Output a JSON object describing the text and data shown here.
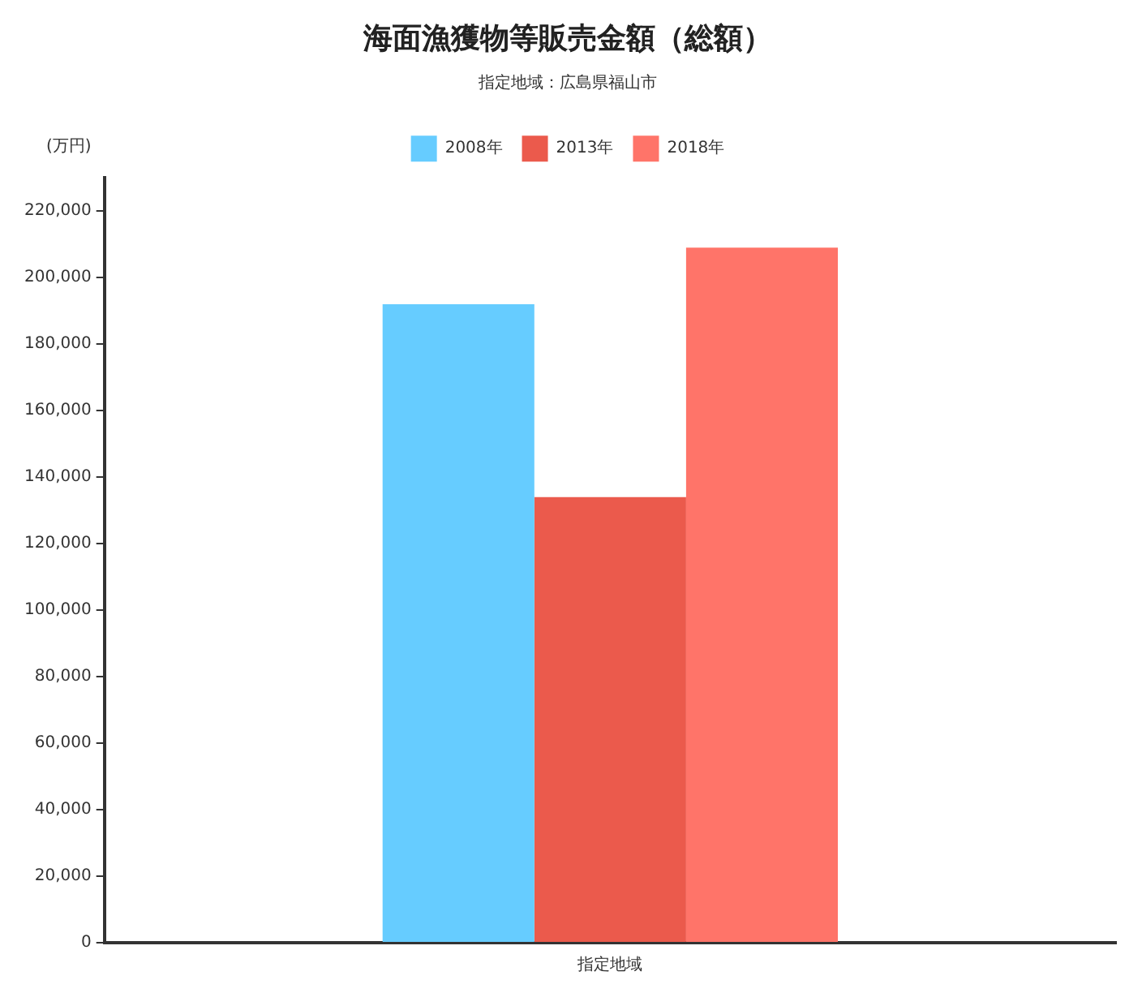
{
  "chart_data": {
    "type": "bar",
    "title": "海面漁獲物等販売金額（総額）",
    "subtitle": "指定地域：広島県福山市",
    "ylabel": "(万円)",
    "categories": [
      "指定地域"
    ],
    "series": [
      {
        "name": "2008年",
        "color": "#66ccff",
        "values": [
          192000
        ]
      },
      {
        "name": "2013年",
        "color": "#eb5a4c",
        "values": [
          134000
        ]
      },
      {
        "name": "2018年",
        "color": "#ff7469",
        "values": [
          209000
        ]
      }
    ],
    "ylim": [
      0,
      230000
    ],
    "yticks": [
      0,
      {
        "value": 20000,
        "label": "20,000"
      },
      {
        "value": 40000,
        "label": "40,000"
      },
      {
        "value": 60000,
        "label": "60,000"
      },
      {
        "value": 80000,
        "label": "80,000"
      },
      {
        "value": 100000,
        "label": "100,000"
      },
      {
        "value": 120000,
        "label": "120,000"
      },
      {
        "value": 140000,
        "label": "140,000"
      },
      {
        "value": 160000,
        "label": "160,000"
      },
      {
        "value": 180000,
        "label": "180,000"
      },
      {
        "value": 200000,
        "label": "200,000"
      },
      {
        "value": 220000,
        "label": "220,000"
      }
    ],
    "grid": false,
    "legend": "top"
  }
}
